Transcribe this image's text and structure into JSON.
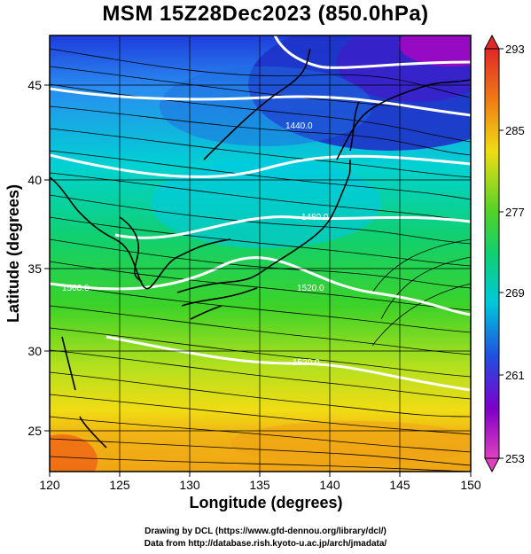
{
  "title": "MSM 15Z28Dec2023 (850.0hPa)",
  "x_axis": {
    "label": "Longitude (degrees)",
    "ticks": [
      "120",
      "125",
      "130",
      "135",
      "140",
      "145",
      "150"
    ]
  },
  "y_axis": {
    "label": "Latitude  (degrees)",
    "ticks": [
      "25",
      "30",
      "35",
      "40",
      "45"
    ]
  },
  "colorbar": {
    "ticks": [
      "293",
      "285",
      "277",
      "269",
      "261",
      "253"
    ],
    "min": 253,
    "max": 293
  },
  "contour_labels": [
    "1440.0",
    "1480.0",
    "1520.0",
    "1560.0",
    "1520.0"
  ],
  "credits": [
    "Drawing by DCL (https://www.gfd-dennou.org/library/dcl/)",
    "Data from http://database.rish.kyoto-u.ac.jp/arch/jmadata/"
  ],
  "colors": {
    "cold": "#8a00c8",
    "cool": "#1e3cdc",
    "mid": "#00c8dc",
    "mild": "#28d228",
    "warm": "#f0dc14",
    "hot": "#f07814"
  }
}
